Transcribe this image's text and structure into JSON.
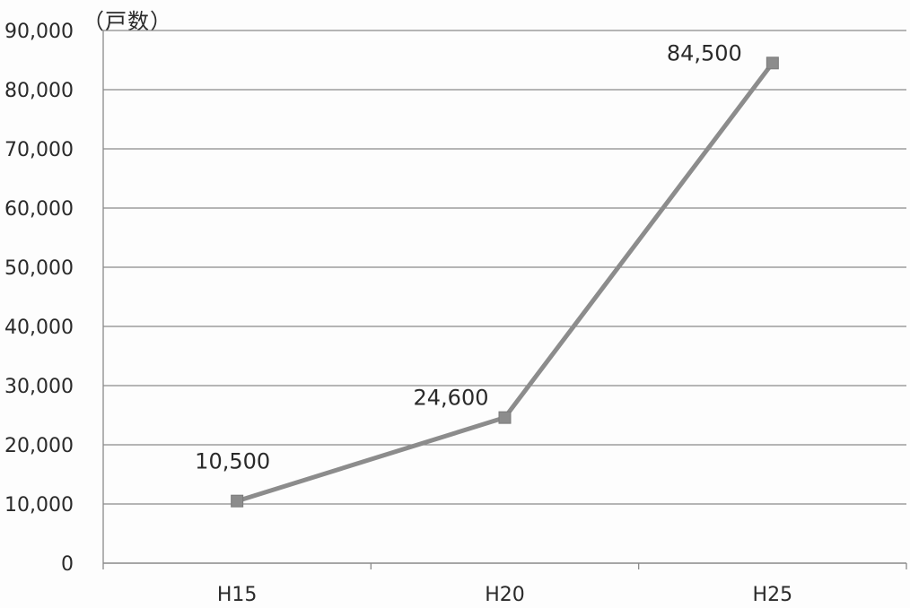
{
  "chart_data": {
    "type": "line",
    "title": "",
    "xlabel": "",
    "ylabel": "（戸数）",
    "categories": [
      "H15",
      "H20",
      "H25"
    ],
    "series": [
      {
        "name": "",
        "values": [
          10500,
          24600,
          84500
        ],
        "color": "#8c8c8c",
        "marker": "square"
      }
    ],
    "data_labels": [
      "10,500",
      "24,600",
      "84,500"
    ],
    "ylim": [
      0,
      90000
    ],
    "yticks": [
      0,
      10000,
      20000,
      30000,
      40000,
      50000,
      60000,
      70000,
      80000,
      90000
    ],
    "ytick_labels": [
      "0",
      "10,000",
      "20,000",
      "30,000",
      "40,000",
      "50,000",
      "60,000",
      "70,000",
      "80,000",
      "90,000"
    ],
    "grid": true,
    "legend": "none",
    "colors": {
      "line": "#8c8c8c",
      "marker": "#8c8c8c",
      "grid": "#8a8a8a",
      "axis": "#8a8a8a",
      "text": "#2a2a2a"
    }
  }
}
